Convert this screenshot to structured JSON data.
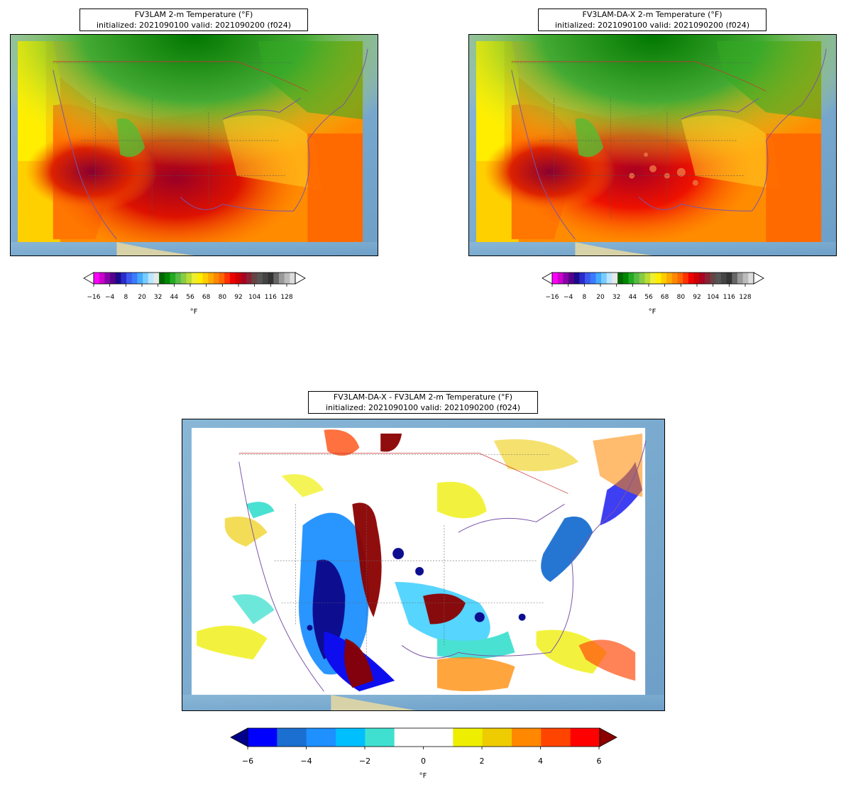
{
  "panels": [
    {
      "id": "fv3lam",
      "title_line1": "FV3LAM 2-m Temperature (°F)",
      "title_line2": "initialized: 2021090100 valid: 2021090200 (f024)",
      "colorbar": {
        "ticks": [
          "−16",
          "−4",
          "8",
          "20",
          "32",
          "44",
          "56",
          "68",
          "80",
          "92",
          "104",
          "116",
          "128"
        ],
        "unit": "°F",
        "colors": [
          "#ff00ff",
          "#cc00cc",
          "#8800aa",
          "#550088",
          "#1a0a8c",
          "#2a2acc",
          "#3a5aee",
          "#3a7aff",
          "#44aaff",
          "#77ccff",
          "#bbe6ff",
          "#e8e8e8",
          "#006600",
          "#008800",
          "#22aa22",
          "#55bb44",
          "#88cc44",
          "#bbdd33",
          "#eeee33",
          "#ffee00",
          "#ffcc00",
          "#ffaa00",
          "#ff8800",
          "#ff6600",
          "#ff3300",
          "#ee0000",
          "#cc0000",
          "#aa0022",
          "#882233",
          "#664444",
          "#555555",
          "#444444",
          "#333333",
          "#666666",
          "#999999",
          "#bbbbbb",
          "#dddddd"
        ]
      }
    },
    {
      "id": "fv3lam-da-x",
      "title_line1": "FV3LAM-DA-X 2-m Temperature (°F)",
      "title_line2": "initialized: 2021090100 valid: 2021090200 (f024)",
      "colorbar": {
        "ticks": [
          "−16",
          "−4",
          "8",
          "20",
          "32",
          "44",
          "56",
          "68",
          "80",
          "92",
          "104",
          "116",
          "128"
        ],
        "unit": "°F",
        "colors": [
          "#ff00ff",
          "#cc00cc",
          "#8800aa",
          "#550088",
          "#1a0a8c",
          "#2a2acc",
          "#3a5aee",
          "#3a7aff",
          "#44aaff",
          "#77ccff",
          "#bbe6ff",
          "#e8e8e8",
          "#006600",
          "#008800",
          "#22aa22",
          "#55bb44",
          "#88cc44",
          "#bbdd33",
          "#eeee33",
          "#ffee00",
          "#ffcc00",
          "#ffaa00",
          "#ff8800",
          "#ff6600",
          "#ff3300",
          "#ee0000",
          "#cc0000",
          "#aa0022",
          "#882233",
          "#664444",
          "#555555",
          "#444444",
          "#333333",
          "#666666",
          "#999999",
          "#bbbbbb",
          "#dddddd"
        ]
      }
    },
    {
      "id": "difference",
      "title_line1": "FV3LAM-DA-X - FV3LAM 2-m Temperature (°F)",
      "title_line2": "initialized: 2021090100 valid: 2021090200 (f024)",
      "colorbar": {
        "ticks": [
          "−6",
          "−4",
          "−2",
          "0",
          "2",
          "4",
          "6"
        ],
        "unit": "°F",
        "colors": [
          "#0000ff",
          "#1a6fd0",
          "#1e90ff",
          "#00bfff",
          "#40e0d0",
          "#ffffff",
          "#ffffff",
          "#eeee00",
          "#eecc00",
          "#ff8800",
          "#ff4400",
          "#ff0000"
        ],
        "under_color": "#00008b",
        "over_color": "#8b0000"
      }
    }
  ],
  "colors": {
    "ocean": "#7fb0d4",
    "land_bg": "#c9c9a8",
    "frame": "#000000"
  }
}
